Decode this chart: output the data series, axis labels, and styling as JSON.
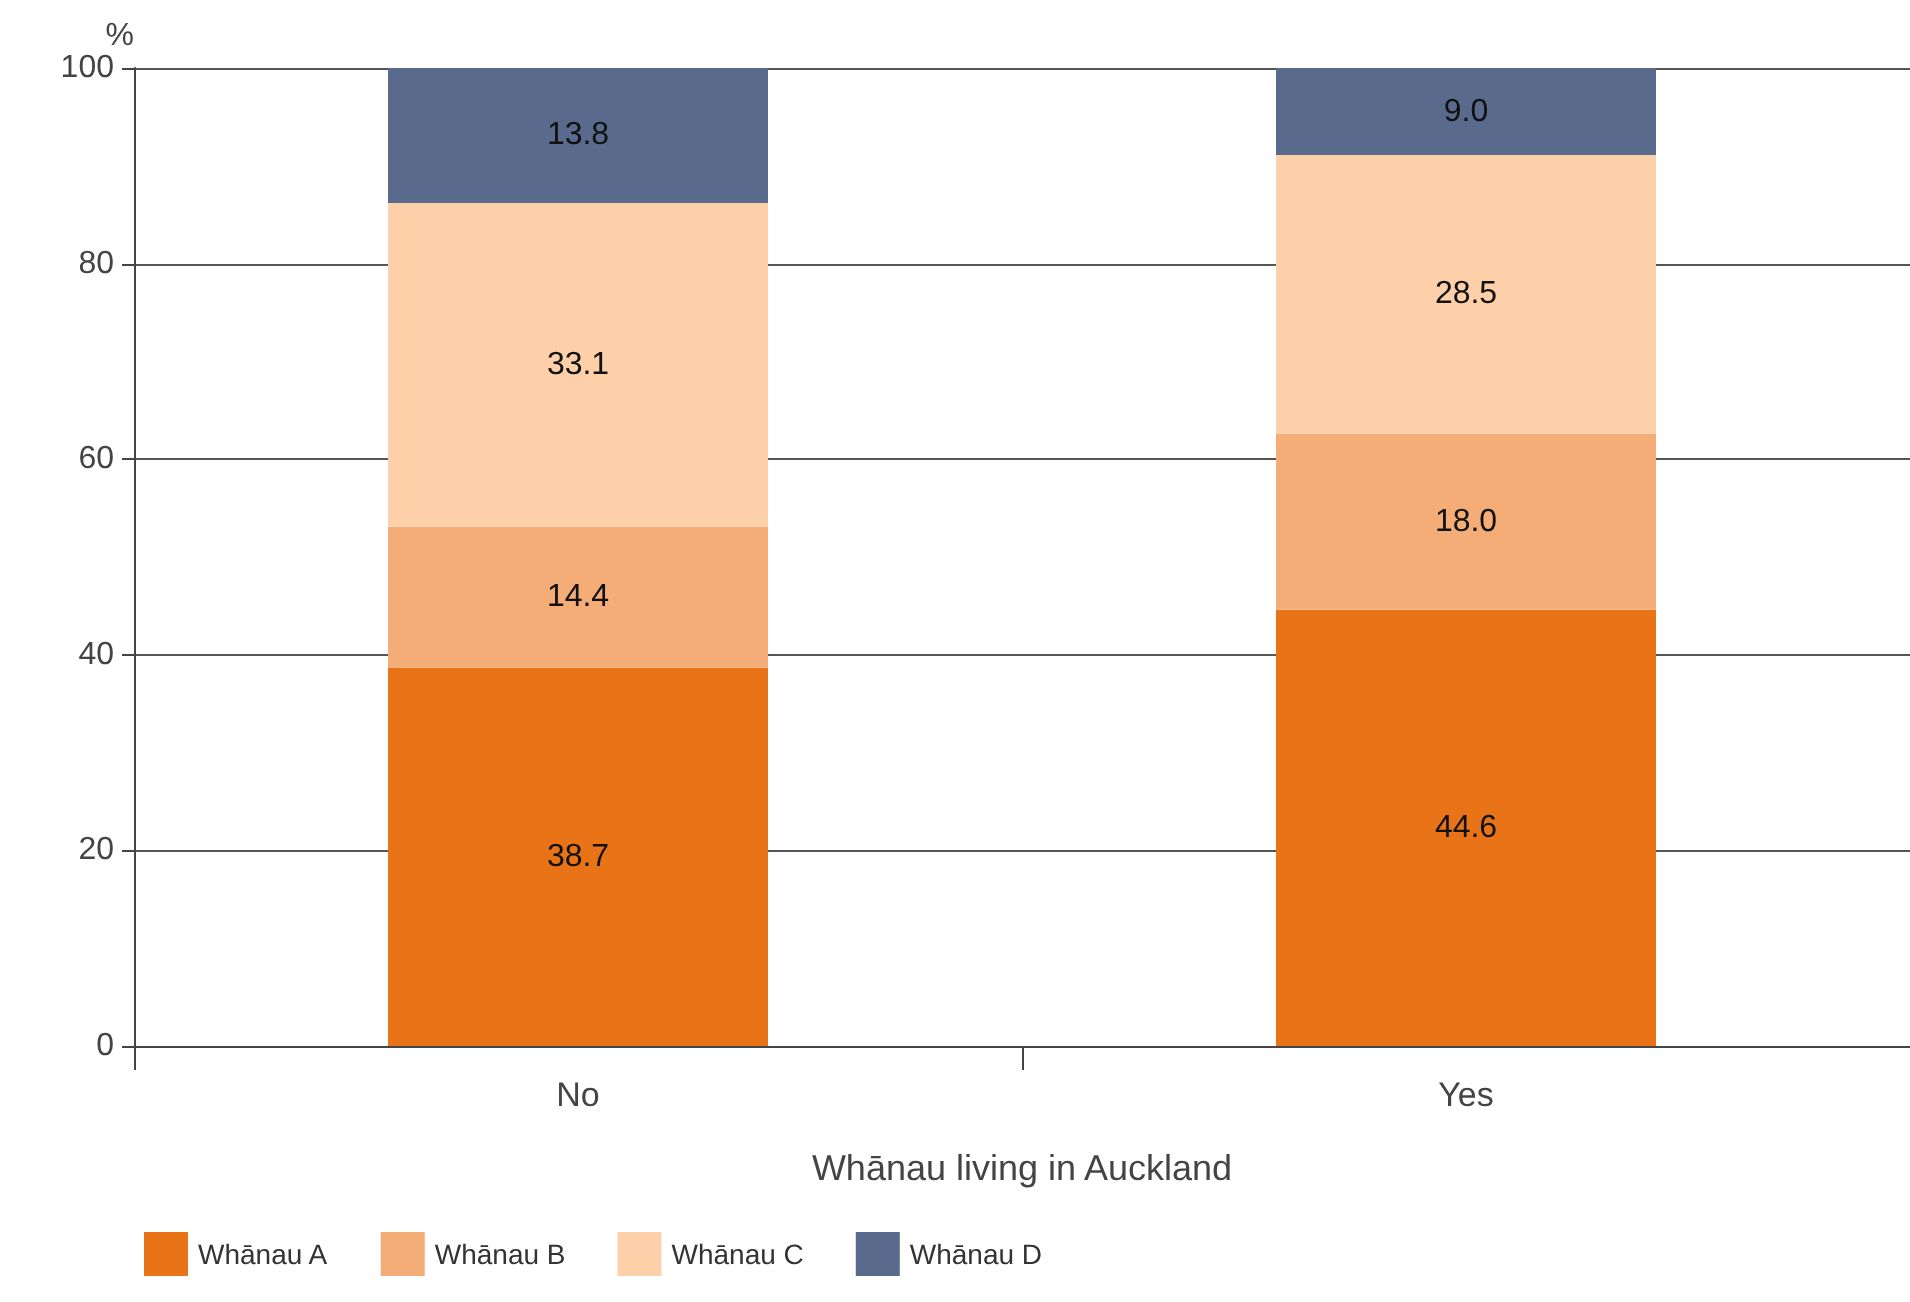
{
  "chart_data": {
    "type": "bar",
    "stacked": true,
    "xlabel": "Whānau living in Auckland",
    "ylabel": "%",
    "categories": [
      "No",
      "Yes"
    ],
    "series": [
      {
        "name": "Whānau A",
        "color": "#e97418",
        "values": [
          38.7,
          44.6
        ],
        "value_labels": [
          "38.7",
          "44.6"
        ]
      },
      {
        "name": "Whānau B",
        "color": "#f5ad78",
        "values": [
          14.4,
          18.0
        ],
        "value_labels": [
          "14.4",
          "18.0"
        ]
      },
      {
        "name": "Whānau C",
        "color": "#fdd0aa",
        "values": [
          33.1,
          28.5
        ],
        "value_labels": [
          "33.1",
          "28.5"
        ]
      },
      {
        "name": "Whānau D",
        "color": "#5a6a8c",
        "values": [
          13.8,
          9.0
        ],
        "value_labels": [
          "13.8",
          "9.0"
        ]
      }
    ],
    "ylim": [
      0,
      100
    ],
    "yticks": [
      0,
      20,
      40,
      60,
      80,
      100
    ],
    "grid": "y",
    "legend": "bottom"
  }
}
